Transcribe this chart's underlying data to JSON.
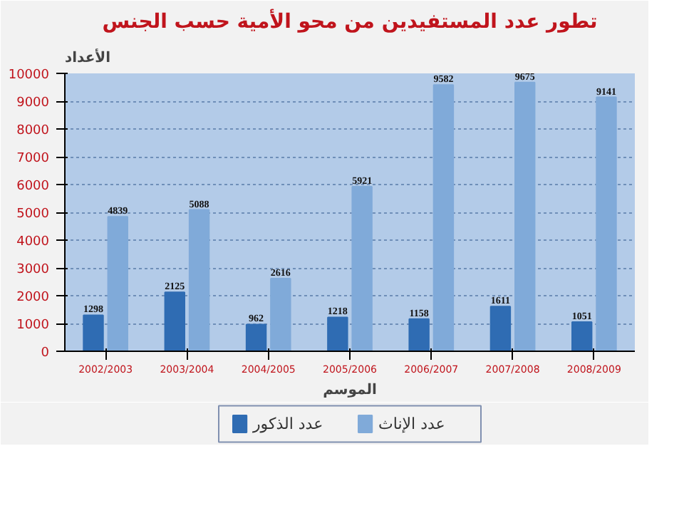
{
  "chart_data": {
    "type": "bar",
    "title": "تطور عدد المستفيدين من محو الأمية حسب الجنس",
    "ylabel": "الأعداد",
    "xlabel": "الموسم",
    "categories": [
      "2002/2003",
      "2003/2004",
      "2004/2005",
      "2005/2006",
      "2006/2007",
      "2007/2008",
      "2008/2009"
    ],
    "series": [
      {
        "name": "عدد الذكور",
        "color": "#2f6cb3",
        "values": [
          1298,
          2125,
          962,
          1218,
          1158,
          1611,
          1051
        ]
      },
      {
        "name": "عدد الإناث",
        "color": "#80aad9",
        "values": [
          4839,
          5088,
          2616,
          5921,
          9582,
          9675,
          9141
        ]
      }
    ],
    "ylim": [
      0,
      10000
    ],
    "yticks": [
      0,
      1000,
      2000,
      3000,
      4000,
      5000,
      6000,
      7000,
      8000,
      9000,
      10000
    ],
    "grid": "y",
    "legend": "bottom",
    "data_labels": true
  }
}
